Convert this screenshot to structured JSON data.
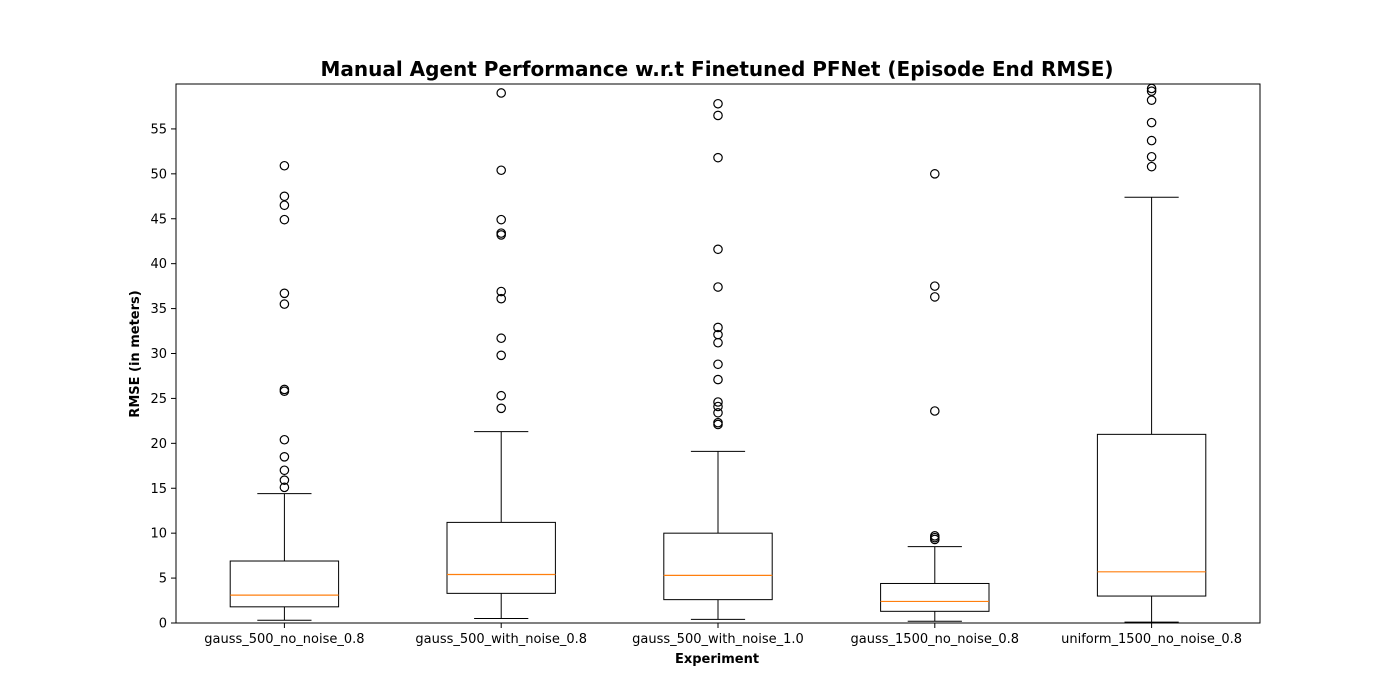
{
  "chart_data": {
    "type": "box",
    "title": "Manual Agent Performance w.r.t Finetuned PFNet (Episode End RMSE)",
    "xlabel": "Experiment",
    "ylabel": "RMSE (in meters)",
    "ylim": [
      0,
      60
    ],
    "yticks": [
      0,
      5,
      10,
      15,
      20,
      25,
      30,
      35,
      40,
      45,
      50,
      55
    ],
    "grid": false,
    "colors": {
      "box": "#000000",
      "median": "#ff7f0e",
      "outlier": "#000000"
    },
    "categories": [
      "gauss_500_no_noise_0.8",
      "gauss_500_with_noise_0.8",
      "gauss_500_with_noise_1.0",
      "gauss_1500_no_noise_0.8",
      "uniform_1500_no_noise_0.8"
    ],
    "boxes": [
      {
        "whisker_low": 0.3,
        "q1": 1.8,
        "median": 3.1,
        "q3": 6.9,
        "whisker_high": 14.4,
        "outliers": [
          15.1,
          15.9,
          17.0,
          18.5,
          20.4,
          25.8,
          26.0,
          35.5,
          36.7,
          44.9,
          46.5,
          47.5,
          50.9
        ]
      },
      {
        "whisker_low": 0.5,
        "q1": 3.3,
        "median": 5.4,
        "q3": 11.2,
        "whisker_high": 21.3,
        "outliers": [
          23.9,
          25.3,
          29.8,
          31.7,
          36.1,
          36.9,
          43.2,
          43.4,
          44.9,
          50.4,
          59.0
        ]
      },
      {
        "whisker_low": 0.4,
        "q1": 2.6,
        "median": 5.3,
        "q3": 10.0,
        "whisker_high": 19.1,
        "outliers": [
          22.1,
          22.3,
          23.4,
          24.1,
          24.6,
          27.1,
          28.8,
          31.2,
          32.1,
          32.9,
          37.4,
          41.6,
          51.8,
          56.5,
          57.8
        ]
      },
      {
        "whisker_low": 0.2,
        "q1": 1.3,
        "median": 2.4,
        "q3": 4.4,
        "whisker_high": 8.5,
        "outliers": [
          9.3,
          9.5,
          9.7,
          23.6,
          36.3,
          37.5,
          50.0
        ]
      },
      {
        "whisker_low": 0.1,
        "q1": 3.0,
        "median": 5.7,
        "q3": 21.0,
        "whisker_high": 47.4,
        "outliers": [
          50.8,
          51.9,
          53.7,
          55.7,
          58.2,
          59.2,
          59.5
        ]
      }
    ]
  }
}
